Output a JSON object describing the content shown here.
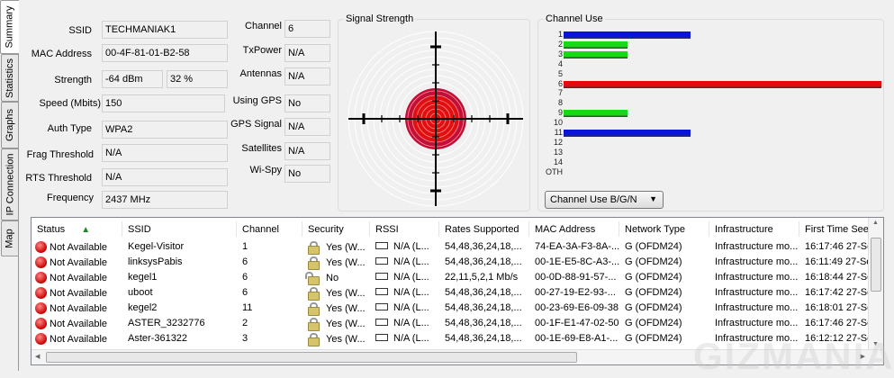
{
  "tabs": [
    {
      "label": "Summary"
    },
    {
      "label": "Statistics"
    },
    {
      "label": "Graphs"
    },
    {
      "label": "IP Connection"
    },
    {
      "label": "Map"
    }
  ],
  "summary": {
    "ssid_label": "SSID",
    "ssid": "TECHMANIAK1",
    "mac_label": "MAC Address",
    "mac": "00-4F-81-01-B2-58",
    "strength_label": "Strength",
    "strength_dbm": "-64 dBm",
    "strength_pct": "32 %",
    "speed_label": "Speed (Mbits)",
    "speed": "150",
    "auth_label": "Auth Type",
    "auth": "WPA2",
    "frag_label": "Frag Threshold",
    "frag": "N/A",
    "rts_label": "RTS Threshold",
    "rts": "N/A",
    "freq_label": "Frequency",
    "freq": "2437 MHz",
    "channel_label": "Channel",
    "channel": "6",
    "txpower_label": "TxPower",
    "txpower": "N/A",
    "antennas_label": "Antennas",
    "antennas": "N/A",
    "gps_label": "Using GPS",
    "gps": "No",
    "gpssignal_label": "GPS Signal",
    "gpssignal": "N/A",
    "satellites_label": "Satellites",
    "satellites": "N/A",
    "wispy_label": "Wi-Spy",
    "wispy": "No"
  },
  "signal": {
    "title": "Signal Strength",
    "percent": 32,
    "color": "#e01010"
  },
  "channel_use": {
    "title": "Channel Use",
    "select": "Channel Use B/G/N",
    "channels": [
      "1",
      "2",
      "3",
      "4",
      "5",
      "6",
      "7",
      "8",
      "9",
      "10",
      "11",
      "12",
      "13",
      "14",
      "OTH"
    ],
    "values": [
      2,
      1,
      1,
      0,
      0,
      5,
      0,
      0,
      1,
      0,
      2,
      0,
      0,
      0,
      0
    ],
    "colors": [
      "#0a14d8",
      "#18d818",
      "#18d818",
      "",
      "",
      "#e80808",
      "",
      "",
      "#18d818",
      "",
      "#0a14d8",
      "",
      "",
      "",
      ""
    ]
  },
  "table": {
    "columns": [
      "Status",
      "SSID",
      "Channel",
      "Security",
      "RSSI",
      "Rates Supported",
      "MAC Address",
      "Network Type",
      "Infrastructure",
      "First Time Seen"
    ],
    "rows": [
      [
        "Not Available",
        "Kegel-Visitor",
        "1",
        "Yes (W...",
        "N/A (L...",
        "54,48,36,24,18,...",
        "74-EA-3A-F3-8A-...",
        "G (OFDM24)",
        "Infrastructure mo...",
        "16:17:46 27-Se"
      ],
      [
        "Not Available",
        "linksysPabis",
        "6",
        "Yes (W...",
        "N/A (L...",
        "54,48,36,24,18,...",
        "00-1E-E5-8C-A3-...",
        "G (OFDM24)",
        "Infrastructure mo...",
        "16:11:49 27-Se"
      ],
      [
        "Not Available",
        "kegel1",
        "6",
        "No",
        "N/A (L...",
        "22,11,5,2,1 Mb/s",
        "00-0D-88-91-57-...",
        "G (OFDM24)",
        "Infrastructure mo...",
        "16:18:44 27-Se"
      ],
      [
        "Not Available",
        "uboot",
        "6",
        "Yes (W...",
        "N/A (L...",
        "54,48,36,24,18,...",
        "00-27-19-E2-93-...",
        "G (OFDM24)",
        "Infrastructure mo...",
        "16:17:42 27-Se"
      ],
      [
        "Not Available",
        "kegel2",
        "11",
        "Yes (W...",
        "N/A (L...",
        "54,48,36,24,18,...",
        "00-23-69-E6-09-38",
        "G (OFDM24)",
        "Infrastructure mo...",
        "16:18:01 27-Se"
      ],
      [
        "Not Available",
        "ASTER_3232776",
        "2",
        "Yes (W...",
        "N/A (L...",
        "54,48,36,24,18,...",
        "00-1F-E1-47-02-50",
        "G (OFDM24)",
        "Infrastructure mo...",
        "16:17:46 27-Se"
      ],
      [
        "Not Available",
        "Aster-361322",
        "3",
        "Yes (W...",
        "N/A (L...",
        "54,48,36,24,18,...",
        "00-1E-69-E8-A1-...",
        "G (OFDM24)",
        "Infrastructure mo...",
        "16:12:12 27-Se"
      ]
    ]
  },
  "watermark": "GIZMANIAK"
}
